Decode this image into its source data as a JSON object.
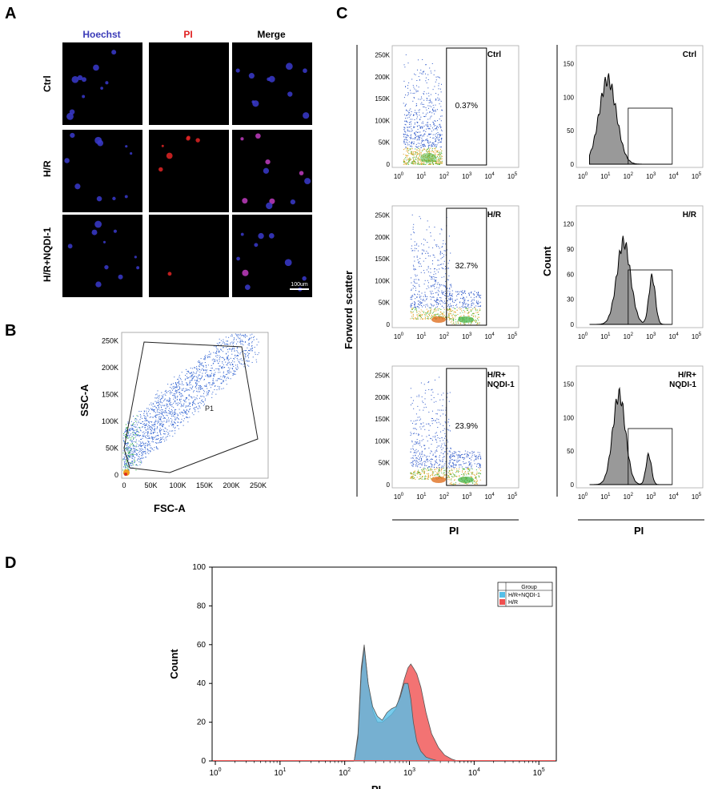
{
  "figure": {
    "panel_labels": {
      "a": "A",
      "b": "B",
      "c": "C",
      "d": "D"
    },
    "panel_a": {
      "columns": [
        "Hoechst",
        "PI",
        "Merge"
      ],
      "column_colors": [
        "#3b3bb8",
        "#e02020",
        "#000000"
      ],
      "rows": [
        "Ctrl",
        "H/R",
        "H/R+NQDI-1"
      ],
      "scale_bar": "100um"
    },
    "panel_b": {
      "xlabel": "FSC-A",
      "ylabel": "SSC-A",
      "x_ticks": [
        "0",
        "50K",
        "100K",
        "150K",
        "200K",
        "250K"
      ],
      "y_ticks": [
        "0",
        "50K",
        "100K",
        "150K",
        "200K",
        "250K"
      ],
      "gate_label": "P1"
    },
    "panel_c": {
      "scatter_ylabel": "Forword scatter",
      "hist_ylabel": "Count",
      "xlabel": "PI",
      "x_ticks": [
        "10",
        "10",
        "10",
        "10",
        "10",
        "10"
      ],
      "x_tick_exponents": [
        "0",
        "1",
        "2",
        "3",
        "4",
        "5"
      ],
      "scatter_y_ticks": [
        "0",
        "50K",
        "100K",
        "150K",
        "200K",
        "250K"
      ],
      "rows": [
        {
          "group": "Ctrl",
          "group_line2": "",
          "percent": "0.37%",
          "hist_y_ticks": [
            "0",
            "50",
            "100",
            "150"
          ]
        },
        {
          "group": "H/R",
          "group_line2": "",
          "percent": "32.7%",
          "hist_y_ticks": [
            "0",
            "30",
            "60",
            "90",
            "120"
          ]
        },
        {
          "group": "H/R+",
          "group_line2": "NQDI-1",
          "percent": "23.9%",
          "hist_y_ticks": [
            "0",
            "50",
            "100",
            "150"
          ]
        }
      ]
    }
  },
  "chart_data": {
    "type": "area",
    "xlabel": "PI",
    "ylabel": "Count",
    "x_scale": "log",
    "xlim": [
      1,
      100000
    ],
    "ylim": [
      0,
      100
    ],
    "y_ticks": [
      "0",
      "20",
      "40",
      "60",
      "80",
      "100"
    ],
    "x_tick_bases": [
      "10",
      "10",
      "10",
      "10",
      "10",
      "10"
    ],
    "x_tick_exponents": [
      "0",
      "1",
      "2",
      "3",
      "4",
      "5"
    ],
    "legend": {
      "title": "Group",
      "placement": "top-right"
    },
    "series": [
      {
        "name": "H/R+NQDI-1",
        "color": "#56bfe8",
        "x": [
          140,
          160,
          180,
          200,
          230,
          270,
          320,
          380,
          450,
          530,
          620,
          720,
          830,
          950,
          1050,
          1150,
          1300,
          1500,
          1800,
          2200,
          2800,
          3500,
          4500
        ],
        "y": [
          0,
          12,
          45,
          59,
          40,
          28,
          23,
          21,
          25,
          27,
          28,
          33,
          40,
          40,
          32,
          20,
          10,
          5,
          2,
          1,
          0,
          0,
          0
        ]
      },
      {
        "name": "H/R",
        "color": "#f05050",
        "x": [
          140,
          160,
          180,
          200,
          230,
          270,
          320,
          380,
          450,
          530,
          620,
          720,
          830,
          950,
          1050,
          1150,
          1300,
          1500,
          1800,
          2200,
          2800,
          3500,
          4500,
          5500
        ],
        "y": [
          0,
          14,
          48,
          60,
          40,
          26,
          20,
          20,
          22,
          24,
          27,
          34,
          42,
          48,
          50,
          48,
          45,
          38,
          25,
          14,
          7,
          3,
          1,
          0
        ]
      }
    ]
  }
}
